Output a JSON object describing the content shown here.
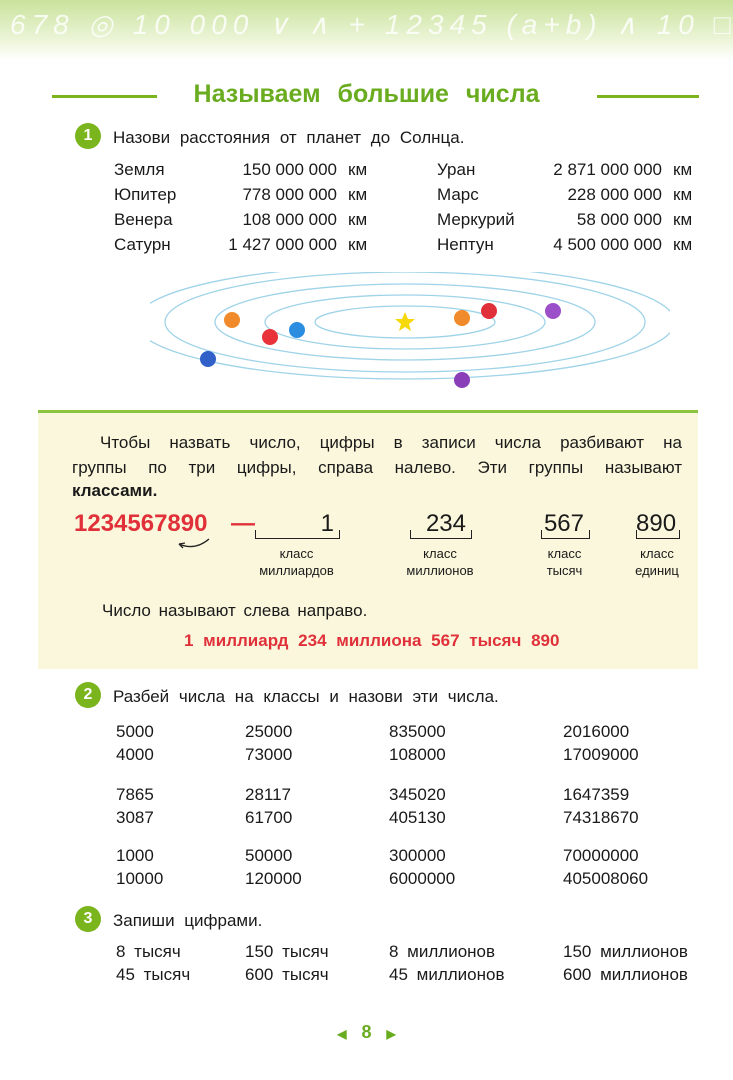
{
  "title": "Называем большие числа",
  "task1": {
    "number": "1",
    "text": "Назови расстояния от планет до Солнца.",
    "unit": "км",
    "left": [
      {
        "planet": "Земля",
        "distance": "150 000 000"
      },
      {
        "planet": "Юпитер",
        "distance": "778 000 000"
      },
      {
        "planet": "Венера",
        "distance": "108 000 000"
      },
      {
        "planet": "Сатурн",
        "distance": "1 427 000 000"
      }
    ],
    "right": [
      {
        "planet": "Уран",
        "distance": "2 871 000 000"
      },
      {
        "planet": "Марс",
        "distance": "228 000 000"
      },
      {
        "planet": "Меркурий",
        "distance": "58 000 000"
      },
      {
        "planet": "Нептун",
        "distance": "4 500 000 000"
      }
    ]
  },
  "rule": {
    "line1": "Чтобы назвать число, цифры в записи числа разбивают на",
    "line2": "группы по три цифры, справа налево. Эти группы называют",
    "line3": "классами.",
    "number": "1234567890",
    "dash": "—",
    "groups": [
      {
        "digits": "1",
        "l1": "класс",
        "l2": "миллиардов"
      },
      {
        "digits": "234",
        "l1": "класс",
        "l2": "миллионов"
      },
      {
        "digits": "567",
        "l1": "класс",
        "l2": "тысяч"
      },
      {
        "digits": "890",
        "l1": "класс",
        "l2": "единиц"
      }
    ],
    "read": "Число называют слева направо.",
    "reading": "1 миллиард 234 миллиона 567 тысяч 890"
  },
  "task2": {
    "number": "2",
    "text": "Разбей числа на классы и назови эти числа.",
    "groups": [
      [
        [
          "5000",
          "25000",
          "835000",
          "2016000"
        ],
        [
          "4000",
          "73000",
          "108000",
          "17009000"
        ]
      ],
      [
        [
          "7865",
          "28117",
          "345020",
          "1647359"
        ],
        [
          "3087",
          "61700",
          "405130",
          "74318670"
        ]
      ],
      [
        [
          "1000",
          "50000",
          "300000",
          "70000000"
        ],
        [
          "10000",
          "120000",
          "6000000",
          "405008060"
        ]
      ]
    ]
  },
  "task3": {
    "number": "3",
    "text": "Запиши цифрами.",
    "rows": [
      [
        "8 тысяч",
        "150 тысяч",
        "8 миллионов",
        "150 миллионов"
      ],
      [
        "45 тысяч",
        "600 тысяч",
        "45 миллионов",
        "600 миллионов"
      ]
    ]
  },
  "page_number": "8",
  "colors": {
    "green": "#7ab51d",
    "red": "#e0303a",
    "box": "#fbf7dc"
  }
}
